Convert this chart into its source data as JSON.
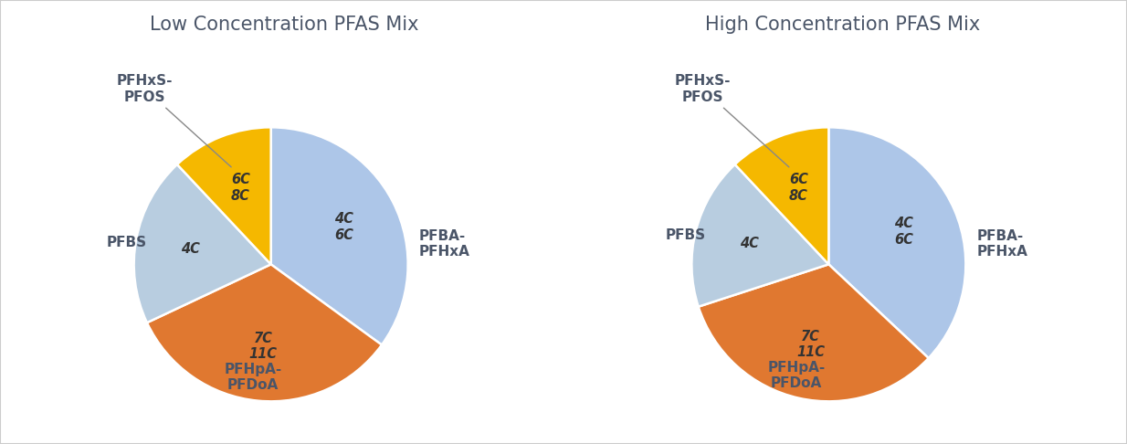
{
  "charts": [
    {
      "title": "Low Concentration PFAS Mix",
      "slices": [
        {
          "label": "PFBA-\nPFHxA",
          "sublabel": "4C\n6C",
          "value": 35,
          "color": "#adc6e8"
        },
        {
          "label": "PFHpA-\nPFDoA",
          "sublabel": "7C\n11C",
          "value": 33,
          "color": "#e07830"
        },
        {
          "label": "PFBS",
          "sublabel": "4C",
          "value": 20,
          "color": "#b8cde0"
        },
        {
          "label": "PFHxS-\nPFOS",
          "sublabel": "6C\n8C",
          "value": 12,
          "color": "#f5b800"
        }
      ]
    },
    {
      "title": "High Concentration PFAS Mix",
      "slices": [
        {
          "label": "PFBA-\nPFHxA",
          "sublabel": "4C\n6C",
          "value": 37,
          "color": "#adc6e8"
        },
        {
          "label": "PFHpA-\nPFDoA",
          "sublabel": "7C\n11C",
          "value": 33,
          "color": "#e07830"
        },
        {
          "label": "PFBS",
          "sublabel": "4C",
          "value": 18,
          "color": "#b8cde0"
        },
        {
          "label": "PFHxS-\nPFOS",
          "sublabel": "6C\n8C",
          "value": 12,
          "color": "#f5b800"
        }
      ]
    }
  ],
  "bg_color": "#ffffff",
  "title_fontsize": 15,
  "label_fontsize": 11,
  "sublabel_fontsize": 10.5,
  "label_color": "#4a5568",
  "startangle": 90
}
